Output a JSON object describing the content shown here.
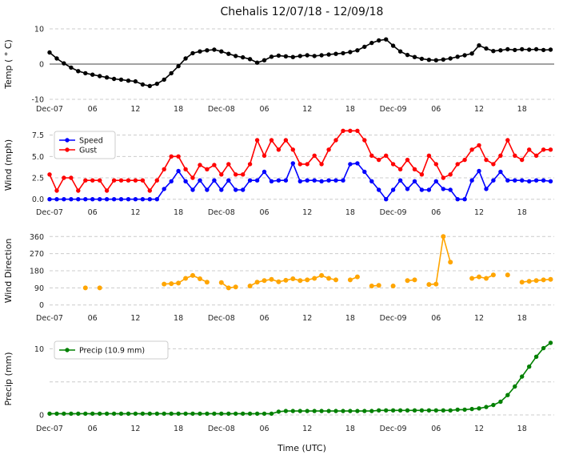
{
  "title": "Chehalis 12/07/18 - 12/09/18",
  "xlabel": "Time (UTC)",
  "x_axis": {
    "min": 0,
    "max": 70.5,
    "ticks": [
      0,
      6,
      12,
      18,
      24,
      30,
      36,
      42,
      48,
      54,
      60,
      66
    ],
    "tick_labels": [
      "Dec-07",
      "06",
      "12",
      "18",
      "Dec-08",
      "06",
      "12",
      "18",
      "Dec-09",
      "06",
      "12",
      "18"
    ]
  },
  "chart_data": [
    {
      "type": "line",
      "name": "temp",
      "ylabel": "Temp ( ° C)",
      "ylim": [
        -10,
        10
      ],
      "yticks": [
        {
          "v": -10,
          "label": "-10"
        },
        {
          "v": 0,
          "label": "0"
        },
        {
          "v": 10,
          "label": "10"
        }
      ],
      "zero_line": true,
      "series": [
        {
          "name": "Temp",
          "color": "#000000",
          "values": [
            3.3,
            1.6,
            0.2,
            -1.0,
            -2.0,
            -2.6,
            -3.0,
            -3.4,
            -3.8,
            -4.2,
            -4.4,
            -4.7,
            -4.9,
            -5.8,
            -6.2,
            -5.6,
            -4.4,
            -2.6,
            -0.6,
            1.6,
            3.1,
            3.6,
            3.9,
            4.1,
            3.6,
            2.9,
            2.3,
            1.9,
            1.4,
            0.4,
            1.1,
            2.1,
            2.4,
            2.2,
            2.0,
            2.3,
            2.5,
            2.3,
            2.5,
            2.7,
            2.9,
            3.1,
            3.4,
            3.9,
            4.9,
            6.0,
            6.7,
            7.0,
            5.2,
            3.6,
            2.6,
            2.0,
            1.5,
            1.2,
            1.1,
            1.3,
            1.6,
            2.1,
            2.5,
            3.0,
            5.3,
            4.4,
            3.7,
            3.9,
            4.2,
            4.0,
            4.2,
            4.1,
            4.2,
            4.0,
            4.1
          ]
        }
      ]
    },
    {
      "type": "line",
      "name": "wind",
      "ylabel": "Wind (mph)",
      "ylim": [
        -0.4,
        8.4
      ],
      "yticks": [
        {
          "v": 0,
          "label": "0.0"
        },
        {
          "v": 2.5,
          "label": "2.5"
        },
        {
          "v": 5,
          "label": "5.0"
        },
        {
          "v": 7.5,
          "label": "7.5"
        }
      ],
      "zero_line": false,
      "legend": {
        "entries": [
          {
            "label": "Speed",
            "color": "#0000ff"
          },
          {
            "label": "Gust",
            "color": "#ff0000"
          }
        ]
      },
      "series": [
        {
          "name": "Speed",
          "color": "#0000ff",
          "values": [
            0,
            0,
            0,
            0,
            0,
            0,
            0,
            0,
            0,
            0,
            0,
            0,
            0,
            0,
            0,
            0,
            1.2,
            2.1,
            3.3,
            2.1,
            1.1,
            2.2,
            1.1,
            2.2,
            1.1,
            2.2,
            1.1,
            1.1,
            2.2,
            2.2,
            3.2,
            2.1,
            2.2,
            2.2,
            4.2,
            2.1,
            2.2,
            2.2,
            2.1,
            2.2,
            2.2,
            2.2,
            4.1,
            4.2,
            3.2,
            2.1,
            1.1,
            0,
            1.1,
            2.2,
            1.2,
            2.1,
            1.1,
            1.1,
            2.1,
            1.2,
            1.1,
            0,
            0,
            2.2,
            3.3,
            1.2,
            2.2,
            3.2,
            2.2,
            2.2,
            2.2,
            2.1,
            2.2,
            2.2,
            2.1
          ]
        },
        {
          "name": "Gust",
          "color": "#ff0000",
          "values": [
            2.9,
            1.0,
            2.5,
            2.5,
            1.0,
            2.2,
            2.2,
            2.2,
            1.0,
            2.2,
            2.2,
            2.2,
            2.2,
            2.2,
            1.0,
            2.2,
            3.5,
            5.0,
            5.0,
            3.5,
            2.5,
            4.0,
            3.5,
            4.0,
            2.9,
            4.1,
            2.9,
            2.9,
            4.1,
            6.9,
            5.1,
            6.9,
            5.8,
            6.9,
            5.8,
            4.1,
            4.1,
            5.1,
            4.1,
            5.8,
            6.9,
            8.0,
            8.0,
            8.0,
            6.9,
            5.1,
            4.6,
            5.1,
            4.1,
            3.5,
            4.6,
            3.5,
            2.9,
            5.1,
            4.1,
            2.5,
            2.9,
            4.1,
            4.6,
            5.8,
            6.3,
            4.6,
            4.1,
            5.1,
            6.9,
            5.1,
            4.6,
            5.8,
            5.1,
            5.8,
            5.8
          ]
        }
      ]
    },
    {
      "type": "line",
      "name": "wind-direction",
      "ylabel": "Wind Direction",
      "ylim": [
        -18,
        378
      ],
      "yticks": [
        {
          "v": 0,
          "label": "0"
        },
        {
          "v": 90,
          "label": "90"
        },
        {
          "v": 180,
          "label": "180"
        },
        {
          "v": 270,
          "label": "270"
        },
        {
          "v": 360,
          "label": "360"
        }
      ],
      "zero_line": false,
      "series": [
        {
          "name": "Wind Direction",
          "color": "#ffa500",
          "marker_r": 3,
          "values": [
            null,
            null,
            null,
            null,
            null,
            90,
            null,
            90,
            null,
            null,
            null,
            null,
            null,
            null,
            null,
            null,
            110,
            112,
            115,
            140,
            155,
            138,
            120,
            null,
            118,
            90,
            95,
            null,
            100,
            120,
            128,
            135,
            122,
            130,
            138,
            128,
            132,
            140,
            155,
            140,
            132,
            null,
            132,
            148,
            null,
            100,
            103,
            null,
            100,
            null,
            128,
            132,
            null,
            108,
            110,
            360,
            225,
            null,
            null,
            140,
            148,
            140,
            158,
            null,
            158,
            null,
            120,
            125,
            128,
            132,
            135
          ]
        }
      ]
    },
    {
      "type": "line",
      "name": "precip",
      "ylabel": "Precip (mm)",
      "ylim": [
        -0.6,
        11.5
      ],
      "yticks": [
        {
          "v": 0,
          "label": "0"
        },
        {
          "v": 5,
          "label": ""
        },
        {
          "v": 10,
          "label": "10"
        }
      ],
      "zero_line": false,
      "show_xlabel": true,
      "legend": {
        "entries": [
          {
            "label": "Precip (10.9 mm)",
            "color": "#008000"
          }
        ]
      },
      "series": [
        {
          "name": "Precip",
          "color": "#008000",
          "values": [
            0.2,
            0.2,
            0.2,
            0.2,
            0.2,
            0.2,
            0.2,
            0.2,
            0.2,
            0.2,
            0.2,
            0.2,
            0.2,
            0.2,
            0.2,
            0.2,
            0.2,
            0.2,
            0.2,
            0.2,
            0.2,
            0.2,
            0.2,
            0.2,
            0.2,
            0.2,
            0.2,
            0.2,
            0.2,
            0.2,
            0.2,
            0.2,
            0.5,
            0.6,
            0.6,
            0.6,
            0.6,
            0.6,
            0.6,
            0.6,
            0.6,
            0.6,
            0.6,
            0.6,
            0.6,
            0.6,
            0.7,
            0.7,
            0.7,
            0.7,
            0.7,
            0.7,
            0.7,
            0.7,
            0.7,
            0.7,
            0.7,
            0.8,
            0.8,
            0.9,
            1.0,
            1.2,
            1.5,
            2.0,
            3.0,
            4.3,
            5.8,
            7.3,
            8.8,
            10.1,
            10.9
          ]
        }
      ]
    }
  ]
}
